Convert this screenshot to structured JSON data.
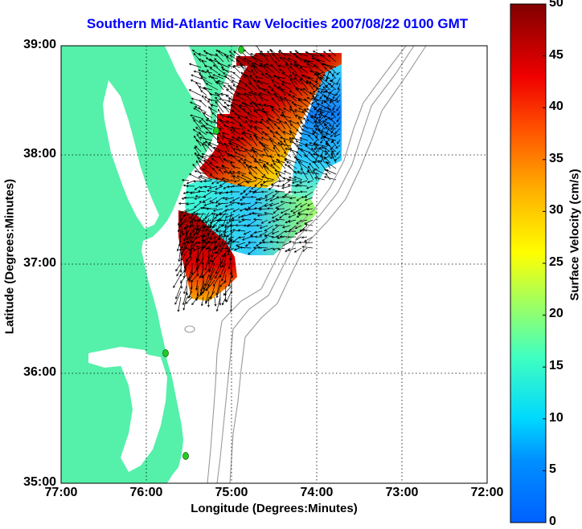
{
  "title": "Southern Mid-Atlantic Raw Velocities 2007/08/22 0100 GMT",
  "x_label": "Longitude (Degrees:Minutes)",
  "y_label": "Latitude (Degrees:Minutes)",
  "colorbar_label": "Surface Velocity (cm/s)",
  "lat_ticks": [
    "39:00",
    "38:00",
    "37:00",
    "36:00",
    "35:00"
  ],
  "lon_ticks": [
    "77:00",
    "76:00",
    "75:00",
    "74:00",
    "73:00",
    "72:00"
  ],
  "colorbar_ticks": [
    "50",
    "45",
    "40",
    "35",
    "30",
    "25",
    "20",
    "15",
    "10",
    "5",
    "0"
  ],
  "colors": {
    "land": "#55f0aa",
    "title": "#0000ff",
    "grid": "#000000",
    "bathymetry": "#999999",
    "station": "#22cc22"
  },
  "chart_data": {
    "type": "heatmap",
    "title": "Southern Mid-Atlantic Raw Velocities 2007/08/22 0100 GMT",
    "xlabel": "Longitude (Degrees:Minutes)",
    "ylabel": "Latitude (Degrees:Minutes)",
    "colorbar_label": "Surface Velocity (cm/s)",
    "xlim": [
      "77:00 W",
      "72:00 W"
    ],
    "ylim": [
      "35:00 N",
      "39:00 N"
    ],
    "colorbar_range": [
      0,
      50
    ],
    "colormap": "jet",
    "grid": "dotted",
    "overlay": "velocity vectors"
  }
}
